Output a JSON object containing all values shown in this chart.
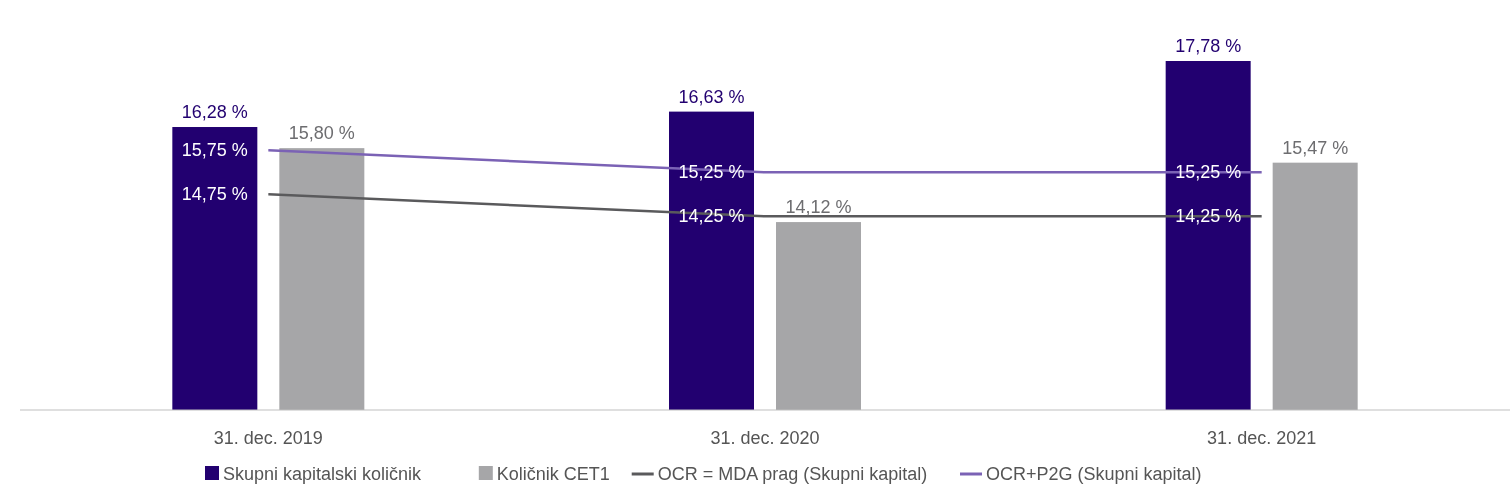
{
  "chart_data": {
    "type": "bar",
    "categories": [
      "31. dec. 2019",
      "31. dec. 2020",
      "31. dec. 2021"
    ],
    "series": [
      {
        "name": "Skupni kapitalski količnik",
        "color": "#220070",
        "values": [
          16.28,
          16.63,
          17.78
        ],
        "value_labels": [
          "16,28 %",
          "16,63 %",
          "17,78 %"
        ]
      },
      {
        "name": "Količnik CET1",
        "color": "#a6a6a8",
        "values": [
          15.8,
          14.12,
          15.47
        ],
        "value_labels": [
          "15,80 %",
          "14,12 %",
          "15,47 %"
        ]
      },
      {
        "name": "OCR = MDA prag (Skupni kapital)",
        "type": "line",
        "color": "#5a5a5c",
        "values": [
          14.75,
          14.25,
          14.25
        ],
        "value_labels": [
          "14,75 %",
          "14,25 %",
          "14,25 %"
        ]
      },
      {
        "name": "OCR+P2G (Skupni kapital)",
        "type": "line",
        "color": "#7b62b5",
        "values": [
          15.75,
          15.25,
          15.25
        ],
        "value_labels": [
          "15,75 %",
          "15,25 %",
          "15,25 %"
        ]
      }
    ],
    "ylim": [
      9.85,
      17.78
    ],
    "tick_labels": "x",
    "legend": "bottom",
    "marker": "none",
    "line_style": "solid"
  }
}
